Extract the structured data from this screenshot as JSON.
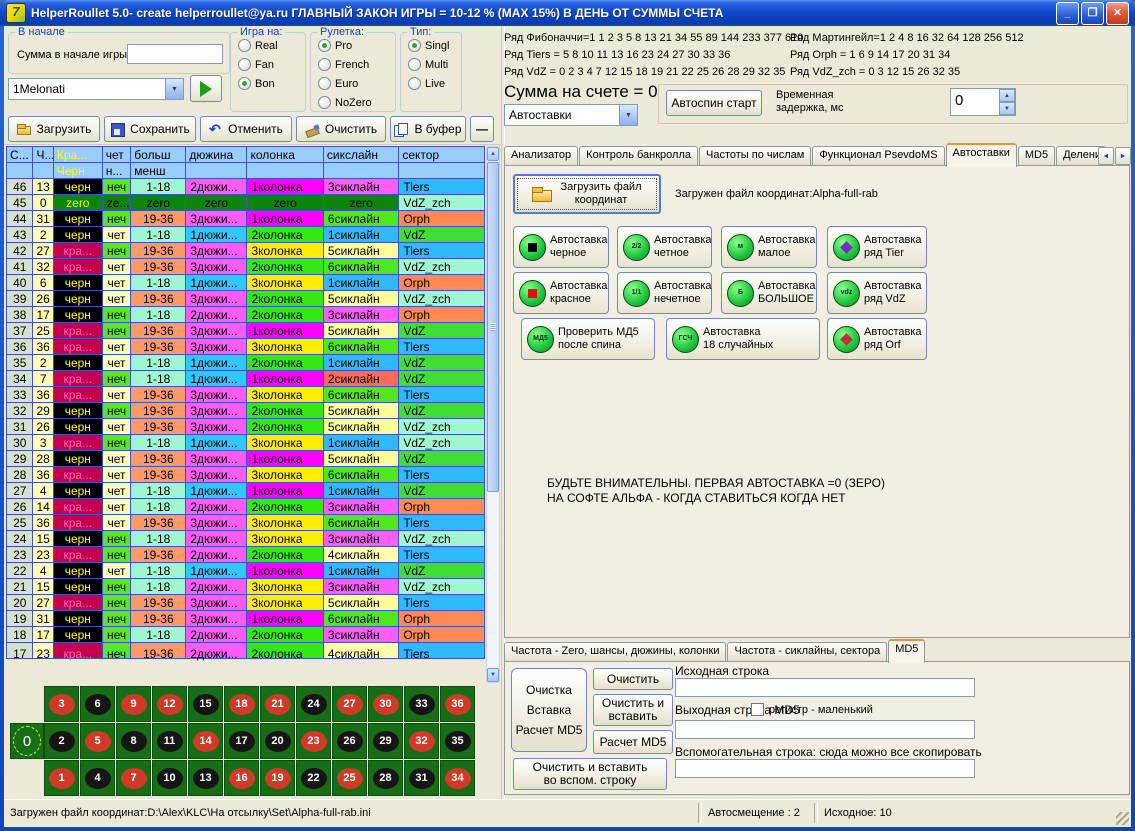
{
  "window": {
    "title": "HelperRoullet 5.0- create helperroullet@ya.ru ГЛАВНЫЙ ЗАКОН ИГРЫ = 10-12 % (MAX 15%) В ДЕНЬ ОТ СУММЫ СЧЕТА",
    "controls": {
      "minimize": "_",
      "maximize": "❐",
      "close": "✕"
    }
  },
  "start_group": {
    "legend": "В начале",
    "label": "Сумма в начале игры",
    "value": ""
  },
  "preset": {
    "value": "1Melonati"
  },
  "radio_groups": [
    {
      "legend": "Игра на:",
      "options": [
        {
          "label": "Real",
          "selected": false
        },
        {
          "label": "Fan",
          "selected": false
        },
        {
          "label": "Bon",
          "selected": true
        }
      ]
    },
    {
      "legend": "Рулетка:",
      "options": [
        {
          "label": "Pro",
          "selected": true
        },
        {
          "label": "French",
          "selected": false
        },
        {
          "label": "Euro",
          "selected": false
        },
        {
          "label": "NoZero",
          "selected": false
        }
      ]
    },
    {
      "legend": "Тип:",
      "options": [
        {
          "label": "Singl",
          "selected": true
        },
        {
          "label": "Multi",
          "selected": false
        },
        {
          "label": "Live",
          "selected": false
        }
      ]
    }
  ],
  "toolbar": [
    {
      "label": "Загрузить",
      "icon": "open-folder-icon"
    },
    {
      "label": "Сохранить",
      "icon": "save-icon"
    },
    {
      "label": "Отменить",
      "icon": "undo-icon"
    },
    {
      "label": "Очистить",
      "icon": "brush-icon"
    },
    {
      "label": "В буфер",
      "icon": "copy-icon"
    }
  ],
  "collapse_button": "—",
  "series": {
    "left": [
      "Ряд Фибоначчи=1 1 2 3 5 8 13 21 34 55 89 144 233 377 610",
      "Ряд Tiers = 5 8 10 11 13 16 23 24 27 30 33 36",
      "Ряд VdZ = 0 2 3 4 7 12 15 18 19 21 22 25 26 28 29 32 35"
    ],
    "right": [
      "Ряд Мартингейл=1 2 4 8 16 32 64 128 256 512",
      "Ряд Orph = 1 6 9 14 17 20 31 34",
      "Ряд VdZ_zch = 0 3 12 15 26 32 35"
    ]
  },
  "account": {
    "balance": "Сумма на счете = 0",
    "autobet_select": "Автоставки",
    "autospin_button": "Автоспин старт",
    "delay_label_1": "Временная",
    "delay_label_2": "задержка, мс",
    "delay_value": "0"
  },
  "tabs": {
    "items": [
      "Анализатор",
      "Контроль банкролла",
      "Частоты по числам",
      "Функционал PsevdoMS",
      "Автоставки",
      "MD5",
      "Делени"
    ],
    "active_index": 4,
    "scroll_left": "◄",
    "scroll_right": "►"
  },
  "autobet_tab": {
    "load_button_line1": "Загрузить файл",
    "load_button_line2": "координат",
    "loaded_text": "Загружен файл координат:Alpha-full-rab",
    "bet_buttons": [
      {
        "line1": "Автоставка",
        "line2": "черное",
        "icon": "black-square"
      },
      {
        "line1": "Автоставка",
        "line2": "четное",
        "icon": "text",
        "icon_text": "2/2"
      },
      {
        "line1": "Автоставка",
        "line2": "малое",
        "icon": "text",
        "icon_text": "м"
      },
      {
        "line1": "Автоставка",
        "line2": "ряд Tier",
        "icon": "purple-diamond"
      },
      {
        "line1": "Автоставка",
        "line2": "красное",
        "icon": "red-square"
      },
      {
        "line1": "Автоставка",
        "line2": "нечетное",
        "icon": "text",
        "icon_text": "1/1"
      },
      {
        "line1": "Автоставка",
        "line2": "БОЛЬШОЕ",
        "icon": "text",
        "icon_text": "Б"
      },
      {
        "line1": "Автоставка",
        "line2": "ряд VdZ",
        "icon": "text",
        "icon_text": "vdz"
      },
      {
        "line1": "Проверить МД5",
        "line2": "после спина",
        "icon": "text",
        "icon_text": "МД5"
      },
      {
        "line1": "Автоставка",
        "line2": "18 случайных",
        "icon": "text",
        "icon_text": "ГСЧ"
      },
      {
        "line1": "Автоставка",
        "line2": "ряд Orf",
        "icon": "red-diamond"
      }
    ],
    "warning_line1": "БУДЬТЕ ВНИМАТЕЛЬНЫ. ПЕРВАЯ АВТОСТАВКА =0 (ЗЕРО)",
    "warning_line2": "НА СОФТЕ АЛЬФА - КОГДА СТАВИТЬСЯ КОГДА НЕТ"
  },
  "bottom_tabs": {
    "items": [
      "Частота - Zero, шансы, дюжины, колонки",
      "Частота - сиклайны, сектора",
      "MD5"
    ],
    "active_index": 2
  },
  "md5_panel": {
    "big_button": [
      "Очистка",
      "Вставка",
      "Расчет MD5"
    ],
    "clear_button": "Очистить",
    "clear_paste_line1": "Очистить и",
    "clear_paste_line2": "вставить",
    "calc_button": "Расчет MD5",
    "aux_button_line1": "Очистить и  вставить",
    "aux_button_line2": "во вспом. строку",
    "source_label": "Исходная строка",
    "source_value": "",
    "output_label": "Выходная строка MD5",
    "register_checkbox_label": "регистр  - маленький",
    "register_checked": false,
    "output_value": "",
    "aux_label": "Вспомогательная строка: сюда можно все скопировать",
    "aux_value": ""
  },
  "table": {
    "header1": [
      "С...",
      "Ч...",
      "Кра...",
      "чет",
      "больш",
      "дюжина",
      "колонка",
      "сикслайн",
      "сектор"
    ],
    "header2": [
      "",
      "",
      "Черн",
      "н...",
      "менш",
      "",
      "",
      "",
      ""
    ],
    "rows": [
      [
        "46",
        "13",
        "черн",
        "неч",
        "1-18",
        "2дюжи...",
        "1колонка",
        "3сиклайн",
        "Tiers"
      ],
      [
        "45",
        "0",
        "zero",
        "ze...",
        "zero",
        "zero",
        "zero",
        "zero",
        "VdZ_zch"
      ],
      [
        "44",
        "31",
        "черн",
        "неч",
        "19-36",
        "3дюжи...",
        "1колонка",
        "6сиклайн",
        "Orph"
      ],
      [
        "43",
        "2",
        "черн",
        "чет",
        "1-18",
        "1дюжи...",
        "2колонка",
        "1сиклайн",
        "VdZ"
      ],
      [
        "42",
        "27",
        "кра...",
        "неч",
        "19-36",
        "3дюжи...",
        "3колонка",
        "5сиклайн",
        "Tiers"
      ],
      [
        "41",
        "32",
        "кра...",
        "чет",
        "19-36",
        "3дюжи...",
        "2колонка",
        "6сиклайн",
        "VdZ_zch"
      ],
      [
        "40",
        "6",
        "черн",
        "чет",
        "1-18",
        "1дюжи...",
        "3колонка",
        "1сиклайн",
        "Orph"
      ],
      [
        "39",
        "26",
        "черн",
        "чет",
        "19-36",
        "3дюжи...",
        "2колонка",
        "5сиклайн",
        "VdZ_zch"
      ],
      [
        "38",
        "17",
        "черн",
        "неч",
        "1-18",
        "2дюжи...",
        "2колонка",
        "3сиклайн",
        "Orph"
      ],
      [
        "37",
        "25",
        "кра...",
        "неч",
        "19-36",
        "3дюжи...",
        "1колонка",
        "5сиклайн",
        "VdZ"
      ],
      [
        "36",
        "36",
        "кра...",
        "чет",
        "19-36",
        "3дюжи...",
        "3колонка",
        "6сиклайн",
        "Tiers"
      ],
      [
        "35",
        "2",
        "черн",
        "чет",
        "1-18",
        "1дюжи...",
        "2колонка",
        "1сиклайн",
        "VdZ"
      ],
      [
        "34",
        "7",
        "кра...",
        "неч",
        "1-18",
        "1дюжи...",
        "1колонка",
        "2сиклайн",
        "VdZ"
      ],
      [
        "33",
        "36",
        "кра...",
        "чет",
        "19-36",
        "3дюжи...",
        "3колонка",
        "6сиклайн",
        "Tiers"
      ],
      [
        "32",
        "29",
        "черн",
        "неч",
        "19-36",
        "3дюжи...",
        "2колонка",
        "5сиклайн",
        "VdZ"
      ],
      [
        "31",
        "26",
        "черн",
        "чет",
        "19-36",
        "3дюжи...",
        "2колонка",
        "5сиклайн",
        "VdZ_zch"
      ],
      [
        "30",
        "3",
        "кра...",
        "неч",
        "1-18",
        "1дюжи...",
        "3колонка",
        "1сиклайн",
        "VdZ_zch"
      ],
      [
        "29",
        "28",
        "черн",
        "чет",
        "19-36",
        "3дюжи...",
        "1колонка",
        "5сиклайн",
        "VdZ"
      ],
      [
        "28",
        "36",
        "кра...",
        "чет",
        "19-36",
        "3дюжи...",
        "3колонка",
        "6сиклайн",
        "Tiers"
      ],
      [
        "27",
        "4",
        "черн",
        "чет",
        "1-18",
        "1дюжи...",
        "1колонка",
        "1сиклайн",
        "VdZ"
      ],
      [
        "26",
        "14",
        "кра...",
        "чет",
        "1-18",
        "2дюжи...",
        "2колонка",
        "3сиклайн",
        "Orph"
      ],
      [
        "25",
        "36",
        "кра...",
        "чет",
        "19-36",
        "3дюжи...",
        "3колонка",
        "6сиклайн",
        "Tiers"
      ],
      [
        "24",
        "15",
        "черн",
        "неч",
        "1-18",
        "2дюжи...",
        "3колонка",
        "3сиклайн",
        "VdZ_zch"
      ],
      [
        "23",
        "23",
        "кра...",
        "неч",
        "19-36",
        "2дюжи...",
        "2колонка",
        "4сиклайн",
        "Tiers"
      ],
      [
        "22",
        "4",
        "черн",
        "чет",
        "1-18",
        "1дюжи...",
        "1колонка",
        "1сиклайн",
        "VdZ"
      ],
      [
        "21",
        "15",
        "черн",
        "неч",
        "1-18",
        "2дюжи...",
        "3колонка",
        "3сиклайн",
        "VdZ_zch"
      ],
      [
        "20",
        "27",
        "кра...",
        "неч",
        "19-36",
        "3дюжи...",
        "3колонка",
        "5сиклайн",
        "Tiers"
      ],
      [
        "19",
        "31",
        "черн",
        "неч",
        "19-36",
        "3дюжи...",
        "1колонка",
        "6сиклайн",
        "Orph"
      ],
      [
        "18",
        "17",
        "черн",
        "неч",
        "1-18",
        "2дюжи...",
        "2колонка",
        "3сиклайн",
        "Orph"
      ]
    ],
    "partial_row": [
      "17",
      "23",
      "кра...",
      "неч",
      "19-36",
      "2дюжи...",
      "2колонка",
      "4сиклайн",
      "Tiers"
    ]
  },
  "board": {
    "zero": "0",
    "rows": [
      [
        3,
        6,
        9,
        12,
        15,
        18,
        21,
        24,
        27,
        30,
        33,
        36
      ],
      [
        2,
        5,
        8,
        11,
        14,
        17,
        20,
        23,
        26,
        29,
        32,
        35
      ],
      [
        1,
        4,
        7,
        10,
        13,
        16,
        19,
        22,
        25,
        28,
        31,
        34
      ]
    ],
    "red_numbers": [
      1,
      3,
      5,
      7,
      9,
      12,
      14,
      16,
      18,
      19,
      21,
      23,
      25,
      27,
      30,
      32,
      34,
      36
    ]
  },
  "status_bar": {
    "file": "Загружен файл координат:D:\\Alex\\KLC\\На отсылку\\Set\\Alpha-full-rab.ini",
    "autoshift": "Автосмещение : 2",
    "source": "Исходное: 10"
  },
  "palette": {
    "cell_black_bg": "#000000",
    "cell_black_fg": "#ffff00",
    "cell_red_bg": "#c4004f",
    "cell_red_fg": "#ff63b8",
    "cell_zero_bg": "#0d840d",
    "even_bg": "#ffffbb",
    "odd_bg": "#58e825",
    "low_bg": "#9ff7cf",
    "high_bg": "#ff9a66",
    "dozen1_bg": "#2fc8ff",
    "dozen2_bg": "#ff5cf7",
    "dozen3_bg": "#ff5cf7",
    "col1_bg": "#ff00ff",
    "col2_bg": "#35e813",
    "col3_bg": "#ffec00",
    "six1_bg": "#2fb9ff",
    "six2_bg": "#ff6a5c",
    "six3_bg": "#ff5cf7",
    "six4_bg": "#ffffaa",
    "six5_bg": "#ffff99",
    "six6_bg": "#4fe81f",
    "sector_tiers_bg": "#2fb9ff",
    "sector_vdz_bg": "#3fdd35",
    "sector_vdzzch_bg": "#9ff7cf",
    "sector_orph_bg": "#ff8a55",
    "header_bg": "#99ccff",
    "board_green": "#176e17",
    "board_red": "#cf3b28",
    "board_black": "#151515",
    "active_tab_accent": "#e5953a"
  }
}
